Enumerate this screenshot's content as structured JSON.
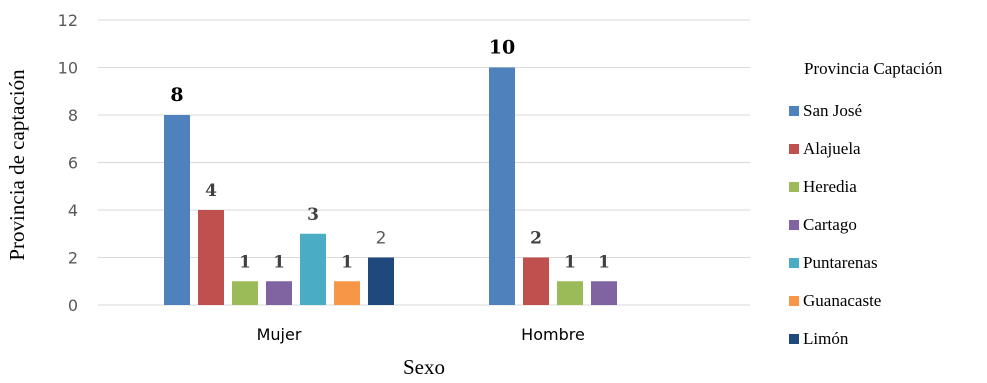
{
  "chart_data": {
    "type": "bar",
    "title": "",
    "xlabel": "Sexo",
    "ylabel": "Provincia de captación",
    "ylim": [
      0,
      12
    ],
    "yticks": [
      0,
      2,
      4,
      6,
      8,
      10,
      12
    ],
    "grid": true,
    "legend_position": "right",
    "legend_title": "Provincia Captación",
    "categories": [
      "Mujer",
      "Hombre"
    ],
    "series": [
      {
        "name": "San José",
        "color": "#4f81bd",
        "values": [
          8,
          10
        ]
      },
      {
        "name": "Alajuela",
        "color": "#c0504d",
        "values": [
          4,
          2
        ]
      },
      {
        "name": "Heredia",
        "color": "#9bbb59",
        "values": [
          1,
          1
        ]
      },
      {
        "name": "Cartago",
        "color": "#8064a2",
        "values": [
          1,
          1
        ]
      },
      {
        "name": "Puntarenas",
        "color": "#4bacc6",
        "values": [
          3,
          null
        ]
      },
      {
        "name": "Guanacaste",
        "color": "#f79646",
        "values": [
          1,
          null
        ]
      },
      {
        "name": "Limón",
        "color": "#1f497d",
        "values": [
          2,
          null
        ]
      }
    ]
  }
}
